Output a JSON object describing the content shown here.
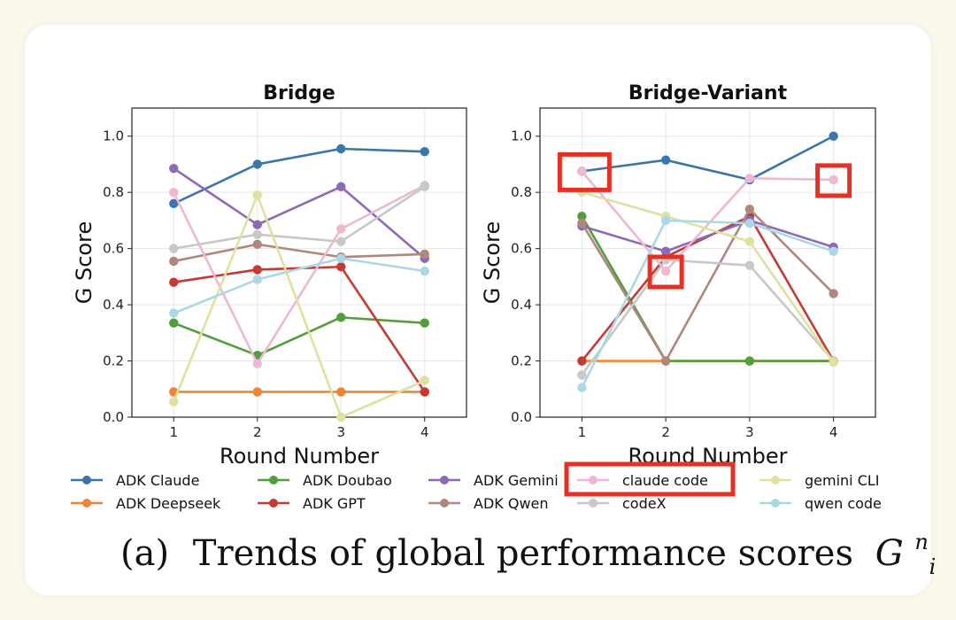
{
  "chart_data": [
    {
      "type": "line",
      "title": "Bridge",
      "xlabel": "Round Number",
      "ylabel": "G Score",
      "x": [
        1,
        2,
        3,
        4
      ],
      "xlim": [
        0.5,
        4.5
      ],
      "ylim": [
        0,
        1.1
      ],
      "yticks": [
        0.0,
        0.2,
        0.4,
        0.6,
        0.8,
        1.0
      ],
      "ytick_labels": [
        "0.0",
        "0.2",
        "0.4",
        "0.6",
        "0.8",
        "1.0"
      ],
      "xtick_labels": [
        "1",
        "2",
        "3",
        "4"
      ],
      "grid": true,
      "series": [
        {
          "name": "ADK Claude",
          "values": [
            0.76,
            0.9,
            0.955,
            0.945
          ]
        },
        {
          "name": "ADK Deepseek",
          "values": [
            0.09,
            0.09,
            0.09,
            0.09
          ]
        },
        {
          "name": "ADK Doubao",
          "values": [
            0.335,
            0.22,
            0.355,
            0.335
          ]
        },
        {
          "name": "ADK GPT",
          "values": [
            0.48,
            0.525,
            0.535,
            0.09
          ]
        },
        {
          "name": "ADK Gemini",
          "values": [
            0.885,
            0.685,
            0.82,
            0.565
          ]
        },
        {
          "name": "ADK Qwen",
          "values": [
            0.555,
            0.615,
            0.57,
            0.58
          ]
        },
        {
          "name": "claude code",
          "values": [
            0.8,
            0.19,
            0.67,
            0.825
          ]
        },
        {
          "name": "codeX",
          "values": [
            0.6,
            0.65,
            0.625,
            0.82
          ]
        },
        {
          "name": "gemini CLI",
          "values": [
            0.055,
            0.79,
            0.0,
            0.13
          ]
        },
        {
          "name": "qwen code",
          "values": [
            0.37,
            0.49,
            0.565,
            0.52
          ]
        }
      ]
    },
    {
      "type": "line",
      "title": "Bridge-Variant",
      "xlabel": "Round Number",
      "ylabel": "G Score",
      "x": [
        1,
        2,
        3,
        4
      ],
      "xlim": [
        0.5,
        4.5
      ],
      "ylim": [
        0,
        1.1
      ],
      "yticks": [
        0.0,
        0.2,
        0.4,
        0.6,
        0.8,
        1.0
      ],
      "ytick_labels": [
        "0.0",
        "0.2",
        "0.4",
        "0.6",
        "0.8",
        "1.0"
      ],
      "xtick_labels": [
        "1",
        "2",
        "3",
        "4"
      ],
      "grid": true,
      "series": [
        {
          "name": "ADK Claude",
          "values": [
            0.875,
            0.915,
            0.845,
            1.0
          ]
        },
        {
          "name": "ADK Deepseek",
          "values": [
            0.2,
            0.2,
            0.2,
            0.2
          ]
        },
        {
          "name": "ADK Doubao",
          "values": [
            0.715,
            0.2,
            0.2,
            0.2
          ]
        },
        {
          "name": "ADK GPT",
          "values": [
            0.2,
            0.57,
            0.715,
            0.2
          ]
        },
        {
          "name": "ADK Gemini",
          "values": [
            0.68,
            0.59,
            0.7,
            0.605
          ]
        },
        {
          "name": "ADK Qwen",
          "values": [
            0.69,
            0.2,
            0.74,
            0.44
          ]
        },
        {
          "name": "claude code",
          "values": [
            0.875,
            0.52,
            0.85,
            0.845
          ]
        },
        {
          "name": "codeX",
          "values": [
            0.15,
            0.56,
            0.54,
            0.2
          ]
        },
        {
          "name": "gemini CLI",
          "values": [
            0.8,
            0.715,
            0.625,
            0.195
          ]
        },
        {
          "name": "qwen code",
          "values": [
            0.105,
            0.7,
            0.69,
            0.59
          ]
        }
      ],
      "annotations": [
        {
          "type": "highlight-box",
          "series": "claude code",
          "round": 1
        },
        {
          "type": "highlight-box",
          "series": "claude code",
          "round": 2
        },
        {
          "type": "highlight-box",
          "series": "claude code",
          "round": 4
        }
      ]
    }
  ],
  "legend": {
    "highlighted": "claude code",
    "items": [
      {
        "name": "ADK Claude",
        "color": "#3b75af"
      },
      {
        "name": "ADK Deepseek",
        "color": "#ef8636"
      },
      {
        "name": "ADK Doubao",
        "color": "#519e3e"
      },
      {
        "name": "ADK GPT",
        "color": "#c53a32"
      },
      {
        "name": "ADK Gemini",
        "color": "#8d69b8"
      },
      {
        "name": "ADK Qwen",
        "color": "#b0877d"
      },
      {
        "name": "claude code",
        "color": "#eeb7d3"
      },
      {
        "name": "codeX",
        "color": "#c8c8c8"
      },
      {
        "name": "gemini CLI",
        "color": "#e1e19f"
      },
      {
        "name": "qwen code",
        "color": "#acd8e6"
      }
    ]
  },
  "highlight_color": "#e33126",
  "caption": {
    "prefix": "(a)",
    "text": "Trends of global performance scores",
    "math_base": "G",
    "math_sup": "n",
    "math_sub": "i",
    "suffix": "."
  }
}
